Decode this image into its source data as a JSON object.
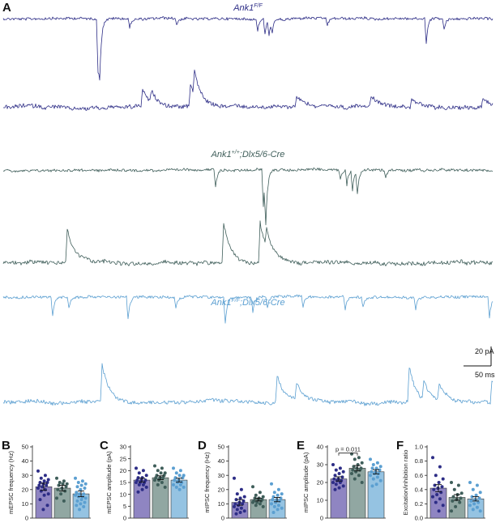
{
  "panel_A": {
    "letter": "A",
    "groups": [
      {
        "label_main": "Ank1",
        "label_sup": "F/F",
        "label_rest": "",
        "color": "#2d2d86",
        "upper_trace": {
          "baseline": 23,
          "events": [
            [
              121,
              68
            ],
            [
              123,
              48
            ],
            [
              160,
              12
            ],
            [
              218,
              8
            ],
            [
              318,
              14
            ],
            [
              327,
              18
            ],
            [
              332,
              20
            ],
            [
              336,
              12
            ],
            [
              404,
              10
            ],
            [
              526,
              30
            ],
            [
              548,
              14
            ]
          ],
          "direction": -1
        },
        "lower_trace": {
          "baseline": 132,
          "events": [
            [
              176,
              20
            ],
            [
              187,
              14
            ],
            [
              235,
              26
            ],
            [
              240,
              30
            ],
            [
              366,
              12
            ],
            [
              458,
              14
            ],
            [
              508,
              10
            ],
            [
              596,
              10
            ]
          ],
          "direction": 1
        }
      },
      {
        "label_main": "Ank1",
        "label_sup": "+/+",
        "label_rest": ";Dlx5/6-Cre",
        "color": "#3f5e5a",
        "upper_trace": {
          "baseline": 210,
          "events": [
            [
              266,
              22
            ],
            [
              325,
              48
            ],
            [
              328,
              58
            ],
            [
              420,
              12
            ],
            [
              428,
              18
            ],
            [
              435,
              26
            ],
            [
              441,
              28
            ],
            [
              476,
              10
            ]
          ],
          "direction": -1
        },
        "lower_trace": {
          "baseline": 325,
          "events": [
            [
              83,
              42
            ],
            [
              276,
              52
            ],
            [
              321,
              50
            ],
            [
              329,
              22
            ]
          ],
          "direction": 1
        }
      },
      {
        "label_main": "Ank1",
        "label_sup": "F/F",
        "label_rest": ";Dlx5/6-Cre",
        "color": "#5b9fd1",
        "upper_trace": {
          "baseline": 367,
          "events": [
            [
              65,
              24
            ],
            [
              85,
              14
            ],
            [
              158,
              28
            ],
            [
              217,
              12
            ],
            [
              278,
              32
            ],
            [
              312,
              18
            ],
            [
              330,
              14
            ],
            [
              374,
              12
            ],
            [
              426,
              18
            ],
            [
              448,
              12
            ],
            [
              513,
              14
            ],
            [
              604,
              26
            ]
          ],
          "direction": -1
        },
        "lower_trace": {
          "baseline": 497,
          "events": [
            [
              126,
              46
            ],
            [
              342,
              34
            ],
            [
              366,
              22
            ],
            [
              505,
              44
            ],
            [
              523,
              24
            ],
            [
              542,
              20
            ],
            [
              607,
              28
            ]
          ],
          "direction": 1
        }
      }
    ],
    "scale_bar": {
      "amplitude_label": "20 pA",
      "time_label": "50 ms"
    }
  },
  "chart_data": [
    {
      "letter": "B",
      "type": "bar",
      "ylabel": "mEPSC frequency (Hz)",
      "ylim": [
        0,
        50
      ],
      "yticks": [
        0,
        10,
        20,
        30,
        40,
        50
      ],
      "values": [
        22,
        21,
        17
      ],
      "sem": [
        2.5,
        2.0,
        2.0
      ],
      "points": [
        [
          33,
          30,
          28,
          27,
          26,
          25,
          25,
          24,
          23,
          23,
          22,
          21,
          20,
          19,
          17,
          16,
          13,
          9,
          6
        ],
        [
          28,
          26,
          25,
          24,
          24,
          23,
          22,
          21,
          20,
          19,
          17,
          14,
          12
        ],
        [
          28,
          26,
          25,
          24,
          23,
          22,
          21,
          20,
          18,
          17,
          17,
          16,
          15,
          15,
          14,
          13,
          12,
          11,
          10,
          9,
          8,
          6
        ]
      ]
    },
    {
      "letter": "C",
      "type": "bar",
      "ylabel": "mEPSC amplitude (pA)",
      "ylim": [
        0,
        30
      ],
      "yticks": [
        0,
        5,
        10,
        15,
        20,
        25,
        30
      ],
      "values": [
        16,
        17,
        16
      ],
      "sem": [
        0.8,
        0.8,
        0.8
      ],
      "points": [
        [
          21,
          20,
          19,
          18,
          17,
          17,
          16,
          16,
          16,
          15,
          15,
          15,
          14,
          14,
          13,
          12,
          11
        ],
        [
          22,
          21,
          20,
          19,
          19,
          18,
          18,
          17,
          17,
          17,
          16,
          16,
          15,
          14,
          13
        ],
        [
          21,
          20,
          19,
          18,
          18,
          17,
          17,
          16,
          16,
          15,
          15,
          14,
          14,
          13,
          13,
          12
        ]
      ]
    },
    {
      "letter": "D",
      "type": "bar",
      "ylabel": "mIPSC frequency (Hz)",
      "ylim": [
        0,
        50
      ],
      "yticks": [
        0,
        10,
        20,
        30,
        40,
        50
      ],
      "values": [
        11,
        13,
        13
      ],
      "sem": [
        2.0,
        1.0,
        1.5
      ],
      "points": [
        [
          28,
          20,
          17,
          15,
          14,
          13,
          12,
          11,
          10,
          10,
          9,
          8,
          7,
          6,
          5,
          4,
          3
        ],
        [
          22,
          18,
          16,
          15,
          14,
          14,
          13,
          13,
          12,
          12,
          11,
          11,
          10,
          9,
          8
        ],
        [
          24,
          20,
          18,
          17,
          16,
          15,
          14,
          13,
          13,
          12,
          11,
          10,
          9,
          8,
          7,
          6,
          4
        ]
      ]
    },
    {
      "letter": "E",
      "type": "bar",
      "ylabel": "mIPSC amplitude (pA)",
      "ylim": [
        0,
        40
      ],
      "yticks": [
        0,
        10,
        20,
        30,
        40
      ],
      "values": [
        22,
        28,
        26
      ],
      "sem": [
        1.2,
        1.5,
        1.2
      ],
      "points": [
        [
          30,
          28,
          27,
          26,
          25,
          24,
          23,
          22,
          22,
          21,
          21,
          20,
          20,
          19,
          18,
          17,
          16
        ],
        [
          36,
          34,
          33,
          31,
          30,
          29,
          28,
          28,
          27,
          27,
          26,
          25,
          24,
          22,
          20
        ],
        [
          33,
          31,
          30,
          29,
          28,
          28,
          27,
          26,
          26,
          25,
          25,
          24,
          23,
          22,
          21,
          19,
          18
        ]
      ],
      "annotation": "p = 0.011"
    },
    {
      "letter": "F",
      "type": "bar",
      "ylabel": "Excitation/inhibition ratio",
      "ylim": [
        0,
        1.0
      ],
      "yticks": [
        0.0,
        0.2,
        0.4,
        0.6,
        0.8,
        1.0
      ],
      "values": [
        0.42,
        0.29,
        0.27
      ],
      "sem": [
        0.05,
        0.04,
        0.03
      ],
      "points": [
        [
          0.85,
          0.72,
          0.6,
          0.55,
          0.5,
          0.46,
          0.44,
          0.42,
          0.4,
          0.36,
          0.33,
          0.3,
          0.27,
          0.22,
          0.18,
          0.1
        ],
        [
          0.5,
          0.46,
          0.4,
          0.35,
          0.33,
          0.3,
          0.28,
          0.26,
          0.24,
          0.22,
          0.16,
          0.1
        ],
        [
          0.5,
          0.46,
          0.4,
          0.36,
          0.32,
          0.3,
          0.28,
          0.26,
          0.24,
          0.22,
          0.2,
          0.18,
          0.15,
          0.12,
          0.1
        ]
      ]
    }
  ],
  "group_colors": {
    "bar_fills": [
      "#8f85c2",
      "#91a7a2",
      "#95c3e2"
    ],
    "dots": [
      "#2d2d86",
      "#3f5e5a",
      "#5b9fd1"
    ]
  }
}
